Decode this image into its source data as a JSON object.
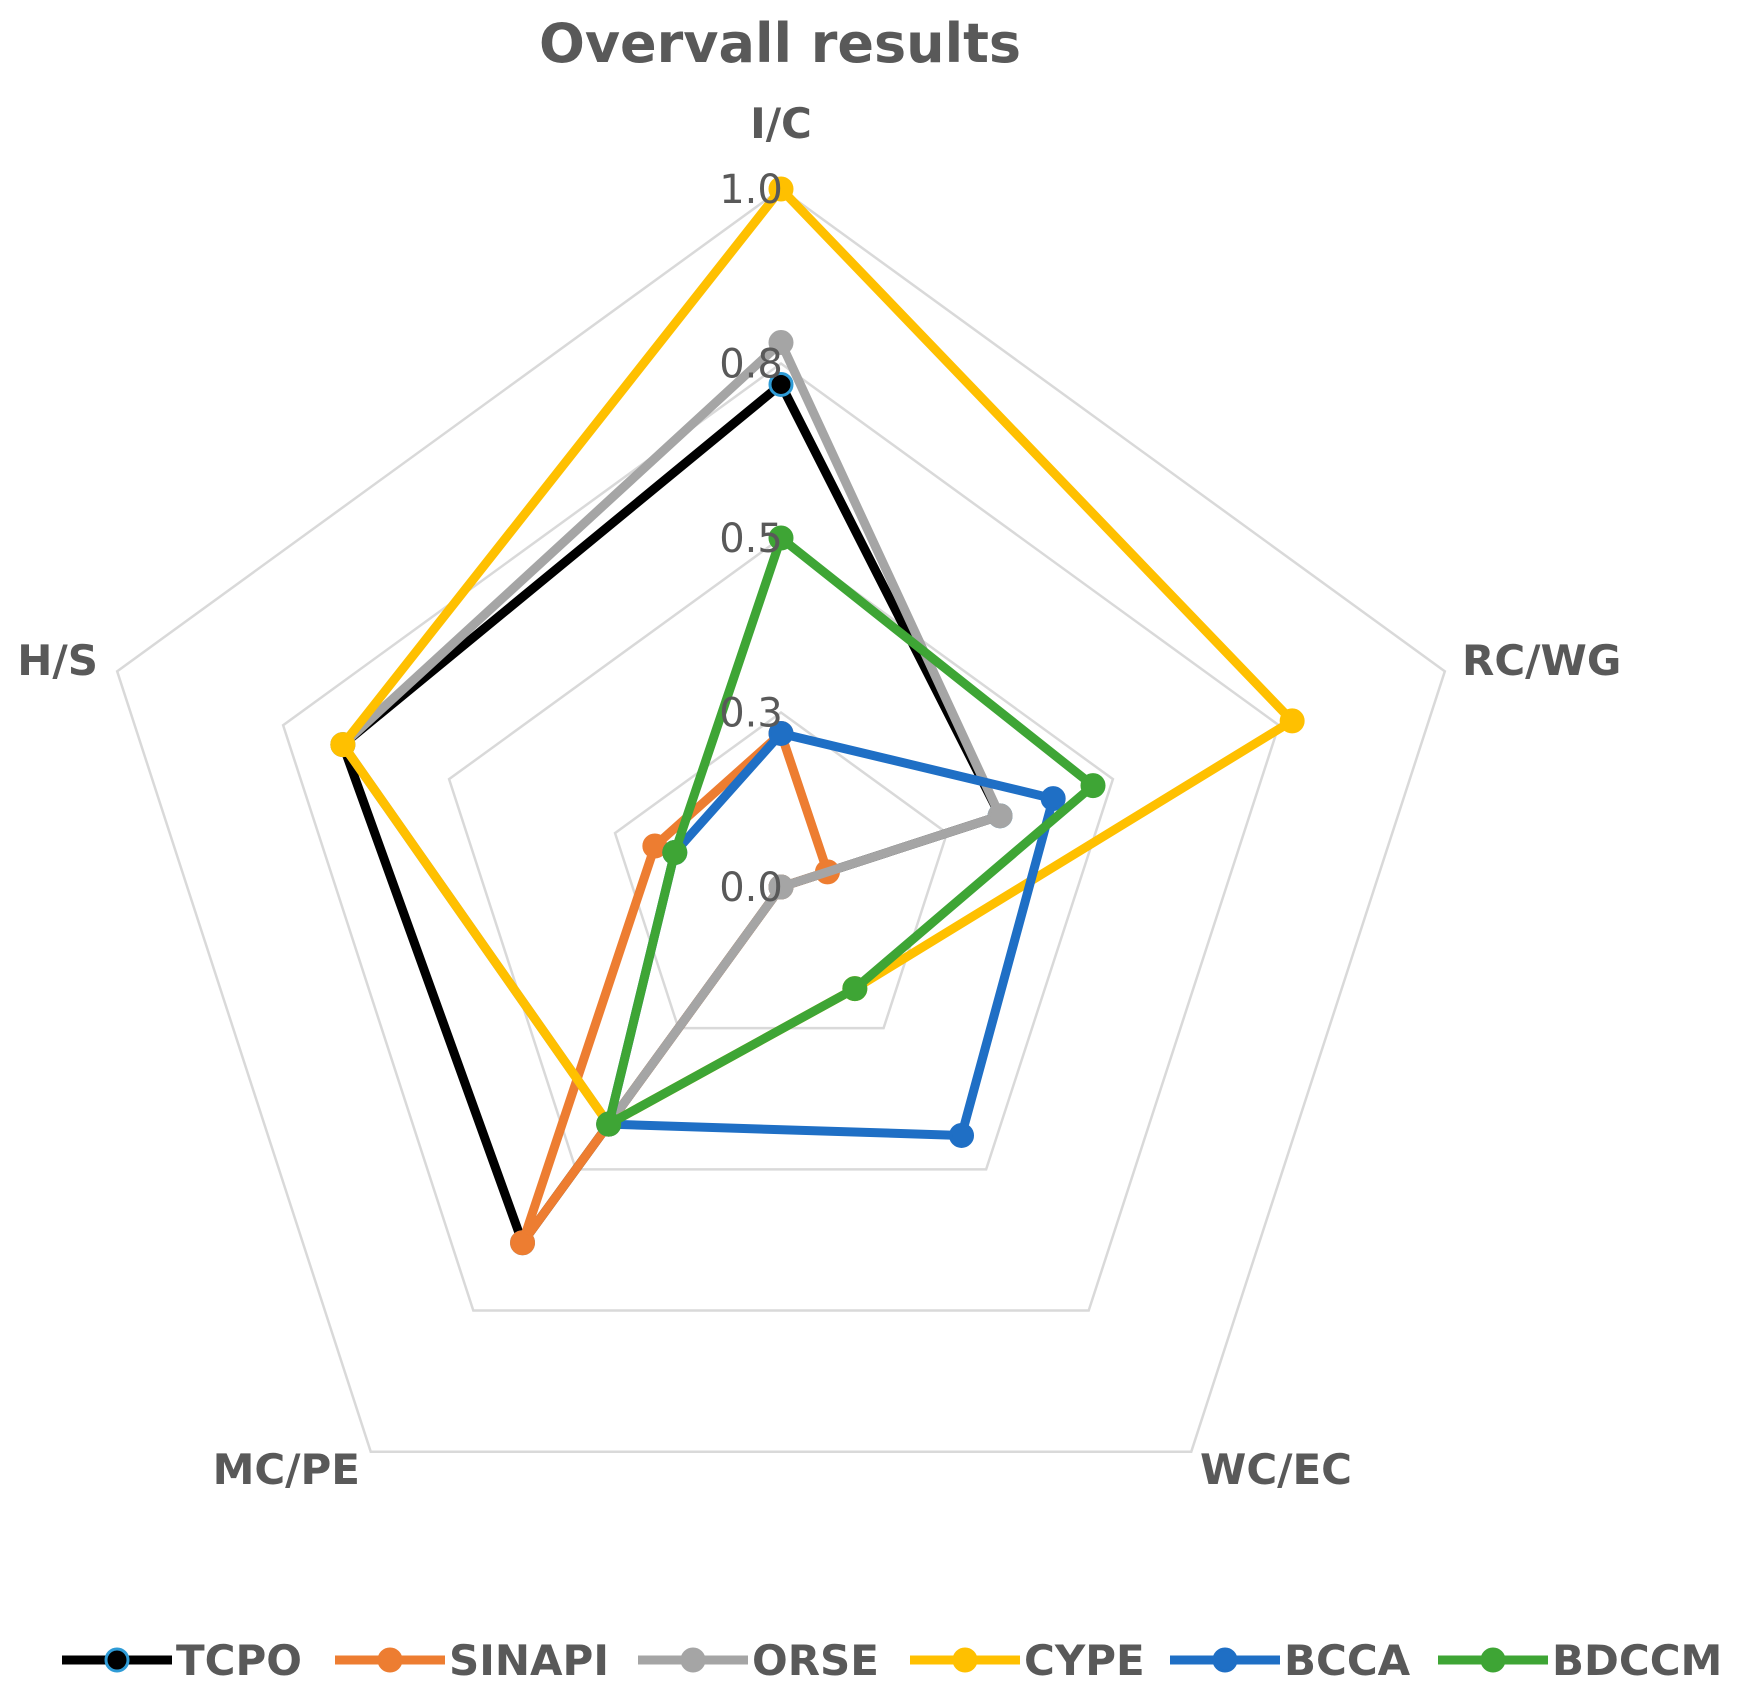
{
  "chart_data": {
    "type": "radar",
    "title": "Overvall results",
    "axes": [
      "I/C",
      "RC/WG",
      "WC/EC",
      "MC/PE",
      "H/S"
    ],
    "tick_labels": [
      "0.0",
      "0.3",
      "0.5",
      "0.8",
      "1.0"
    ],
    "rlim": [
      0,
      1
    ],
    "grid": true,
    "legend_position": "bottom",
    "series": [
      {
        "name": "TCPO",
        "color": "#000000",
        "marker_fill": "#000000",
        "marker_stroke": "#2E9BD6",
        "values": [
          0.72,
          0.33,
          0.0,
          0.63,
          0.66
        ]
      },
      {
        "name": "SINAPI",
        "color": "#ED7D31",
        "marker_fill": "#ED7D31",
        "marker_stroke": "#ED7D31",
        "values": [
          0.22,
          0.07,
          0.0,
          0.63,
          0.19
        ]
      },
      {
        "name": "ORSE",
        "color": "#A5A5A5",
        "marker_fill": "#A5A5A5",
        "marker_stroke": "#A5A5A5",
        "values": [
          0.78,
          0.33,
          0.0,
          0.42,
          0.66
        ]
      },
      {
        "name": "CYPE",
        "color": "#FFC000",
        "marker_fill": "#FFC000",
        "marker_stroke": "#FFC000",
        "values": [
          1.0,
          0.77,
          0.18,
          0.42,
          0.66
        ]
      },
      {
        "name": "BCCA",
        "color": "#1F6FC5",
        "marker_fill": "#1F6FC5",
        "marker_stroke": "#1F6FC5",
        "values": [
          0.22,
          0.41,
          0.44,
          0.42,
          0.16
        ]
      },
      {
        "name": "BDCCM",
        "color": "#3EA535",
        "marker_fill": "#3EA535",
        "marker_stroke": "#3EA535",
        "values": [
          0.5,
          0.47,
          0.18,
          0.42,
          0.16
        ]
      }
    ]
  }
}
